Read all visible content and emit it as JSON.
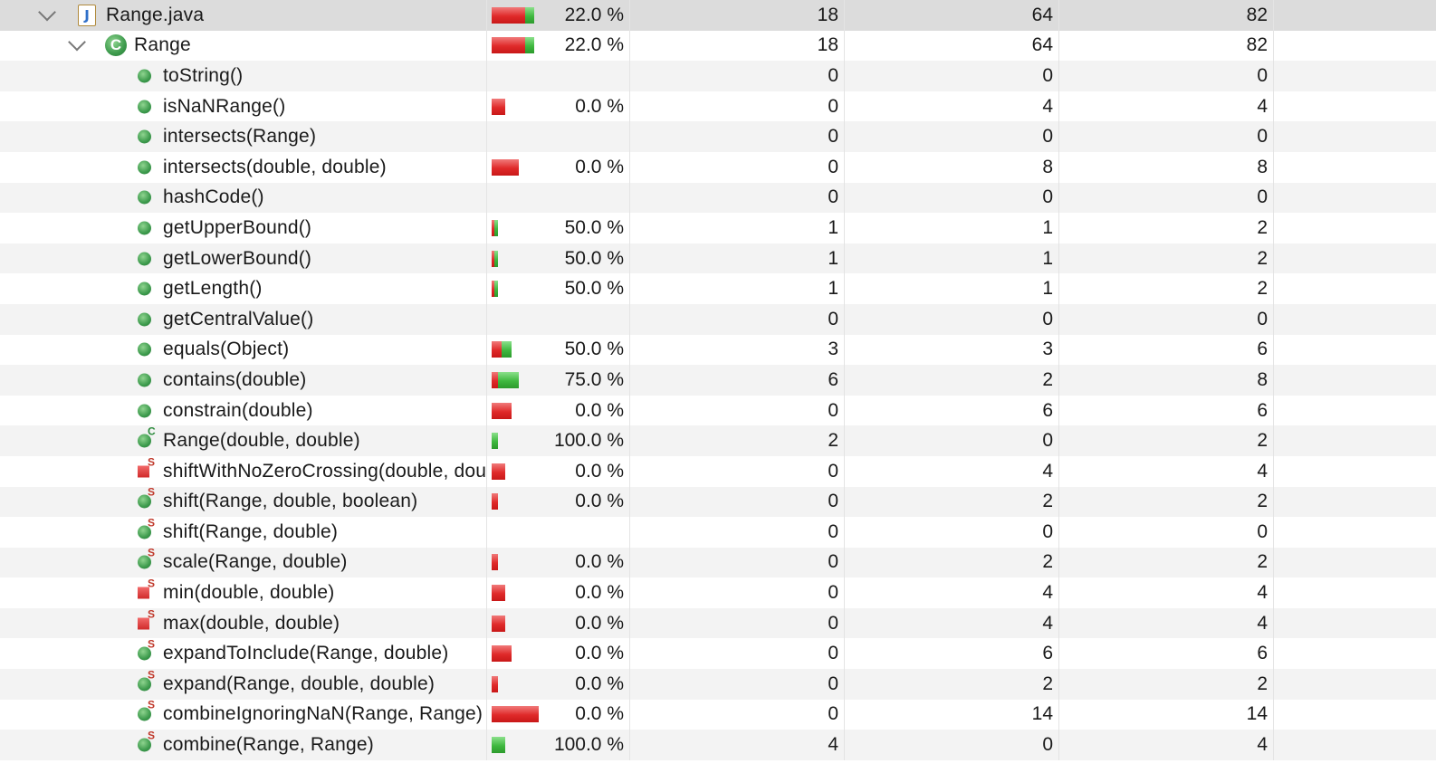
{
  "rows": [
    {
      "name": "Range.java",
      "coverage": "22.0 %",
      "covered": "18",
      "missed": "64",
      "total": "82",
      "level": 0,
      "icon": "java-file-icon",
      "expanded": true,
      "bar_red": 0.78,
      "bar_green": 0.22,
      "bar_scale": 82
    },
    {
      "name": "Range",
      "coverage": "22.0 %",
      "covered": "18",
      "missed": "64",
      "total": "82",
      "level": 1,
      "icon": "class-icon",
      "expanded": true,
      "bar_red": 0.78,
      "bar_green": 0.22,
      "bar_scale": 82
    },
    {
      "name": "toString()",
      "coverage": "",
      "covered": "0",
      "missed": "0",
      "total": "0",
      "level": 2,
      "icon": "public-method-icon"
    },
    {
      "name": "isNaNRange()",
      "coverage": "0.0 %",
      "covered": "0",
      "missed": "4",
      "total": "4",
      "level": 2,
      "icon": "public-method-icon"
    },
    {
      "name": "intersects(Range)",
      "coverage": "",
      "covered": "0",
      "missed": "0",
      "total": "0",
      "level": 2,
      "icon": "public-method-icon"
    },
    {
      "name": "intersects(double, double)",
      "coverage": "0.0 %",
      "covered": "0",
      "missed": "8",
      "total": "8",
      "level": 2,
      "icon": "public-method-icon"
    },
    {
      "name": "hashCode()",
      "coverage": "",
      "covered": "0",
      "missed": "0",
      "total": "0",
      "level": 2,
      "icon": "public-method-icon"
    },
    {
      "name": "getUpperBound()",
      "coverage": "50.0 %",
      "covered": "1",
      "missed": "1",
      "total": "2",
      "level": 2,
      "icon": "public-method-icon"
    },
    {
      "name": "getLowerBound()",
      "coverage": "50.0 %",
      "covered": "1",
      "missed": "1",
      "total": "2",
      "level": 2,
      "icon": "public-method-icon"
    },
    {
      "name": "getLength()",
      "coverage": "50.0 %",
      "covered": "1",
      "missed": "1",
      "total": "2",
      "level": 2,
      "icon": "public-method-icon"
    },
    {
      "name": "getCentralValue()",
      "coverage": "",
      "covered": "0",
      "missed": "0",
      "total": "0",
      "level": 2,
      "icon": "public-method-icon"
    },
    {
      "name": "equals(Object)",
      "coverage": "50.0 %",
      "covered": "3",
      "missed": "3",
      "total": "6",
      "level": 2,
      "icon": "public-method-icon"
    },
    {
      "name": "contains(double)",
      "coverage": "75.0 %",
      "covered": "6",
      "missed": "2",
      "total": "8",
      "level": 2,
      "icon": "public-method-icon"
    },
    {
      "name": "constrain(double)",
      "coverage": "0.0 %",
      "covered": "0",
      "missed": "6",
      "total": "6",
      "level": 2,
      "icon": "public-method-icon"
    },
    {
      "name": "Range(double, double)",
      "coverage": "100.0 %",
      "covered": "2",
      "missed": "0",
      "total": "2",
      "level": 2,
      "icon": "constructor-icon"
    },
    {
      "name": "shiftWithNoZeroCrossing(double, double)",
      "coverage": "0.0 %",
      "covered": "0",
      "missed": "4",
      "total": "4",
      "level": 2,
      "icon": "private-static-method-icon"
    },
    {
      "name": "shift(Range, double, boolean)",
      "coverage": "0.0 %",
      "covered": "0",
      "missed": "2",
      "total": "2",
      "level": 2,
      "icon": "public-static-method-icon"
    },
    {
      "name": "shift(Range, double)",
      "coverage": "",
      "covered": "0",
      "missed": "0",
      "total": "0",
      "level": 2,
      "icon": "public-static-method-icon"
    },
    {
      "name": "scale(Range, double)",
      "coverage": "0.0 %",
      "covered": "0",
      "missed": "2",
      "total": "2",
      "level": 2,
      "icon": "public-static-method-icon"
    },
    {
      "name": "min(double, double)",
      "coverage": "0.0 %",
      "covered": "0",
      "missed": "4",
      "total": "4",
      "level": 2,
      "icon": "private-static-method-icon"
    },
    {
      "name": "max(double, double)",
      "coverage": "0.0 %",
      "covered": "0",
      "missed": "4",
      "total": "4",
      "level": 2,
      "icon": "private-static-method-icon"
    },
    {
      "name": "expandToInclude(Range, double)",
      "coverage": "0.0 %",
      "covered": "0",
      "missed": "6",
      "total": "6",
      "level": 2,
      "icon": "public-static-method-icon"
    },
    {
      "name": "expand(Range, double, double)",
      "coverage": "0.0 %",
      "covered": "0",
      "missed": "2",
      "total": "2",
      "level": 2,
      "icon": "public-static-method-icon"
    },
    {
      "name": "combineIgnoringNaN(Range, Range)",
      "coverage": "0.0 %",
      "covered": "0",
      "missed": "14",
      "total": "14",
      "level": 2,
      "icon": "public-static-method-icon"
    },
    {
      "name": "combine(Range, Range)",
      "coverage": "100.0 %",
      "covered": "4",
      "missed": "0",
      "total": "4",
      "level": 2,
      "icon": "public-static-method-icon"
    }
  ],
  "colors": {
    "covered": "#3fb83f",
    "missed": "#e02a2a",
    "selection": "#dcdcdc",
    "stripe": "#f3f3f3"
  }
}
